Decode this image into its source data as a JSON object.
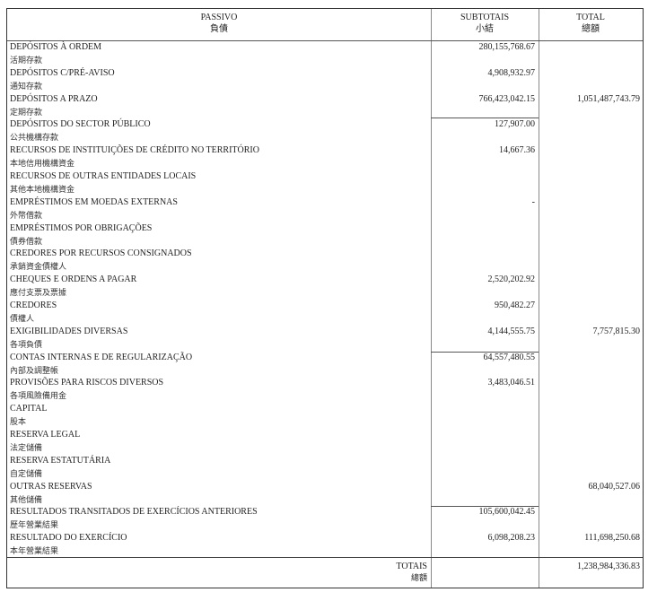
{
  "header": {
    "col1": "PASSIVO",
    "col1_zh": "負債",
    "col2": "SUBTOTAIS",
    "col2_zh": "小結",
    "col3": "TOTAL",
    "col3_zh": "總額"
  },
  "rows": [
    {
      "pt": "DEPÓSITOS À ORDEM",
      "zh": "活期存款",
      "sub": "280,155,768.67",
      "tot": ""
    },
    {
      "pt": "DEPÓSITOS C/PRÉ-AVISO",
      "zh": "通知存款",
      "sub": "4,908,932.97",
      "tot": ""
    },
    {
      "pt": "DEPÓSITOS A PRAZO",
      "zh": "定期存款",
      "sub": "766,423,042.15",
      "tot": "1,051,487,743.79"
    },
    {
      "pt": "DEPÓSITOS DO SECTOR PÚBLICO",
      "zh": "公共機構存款",
      "sub": "127,907.00",
      "tot": ""
    },
    {
      "pt": "RECURSOS DE INSTITUIÇÕES DE CRÉDITO NO TERRITÓRIO",
      "zh": "本地信用機構資金",
      "sub": "14,667.36",
      "tot": ""
    },
    {
      "pt": "RECURSOS DE OUTRAS ENTIDADES LOCAIS",
      "zh": "其他本地機構資金",
      "sub": "",
      "tot": ""
    },
    {
      "pt": "EMPRÉSTIMOS EM MOEDAS EXTERNAS",
      "zh": "外幣借款",
      "sub": "-",
      "tot": ""
    },
    {
      "pt": "EMPRÉSTIMOS POR OBRIGAÇÕES",
      "zh": "債券借款",
      "sub": "",
      "tot": ""
    },
    {
      "pt": "CREDORES POR RECURSOS CONSIGNADOS",
      "zh": "承銷資金債權人",
      "sub": "",
      "tot": ""
    },
    {
      "pt": "CHEQUES E ORDENS A PAGAR",
      "zh": "應付支票及票據",
      "sub": "2,520,202.92",
      "tot": ""
    },
    {
      "pt": "CREDORES",
      "zh": "債權人",
      "sub": "950,482.27",
      "tot": ""
    },
    {
      "pt": "EXIGIBILIDADES DIVERSAS",
      "zh": "各項負債",
      "sub": "4,144,555.75",
      "tot": "7,757,815.30"
    },
    {
      "pt": "CONTAS INTERNAS E DE REGULARIZAÇÃO",
      "zh": "內部及調整帳",
      "sub": "64,557,480.55",
      "tot": ""
    },
    {
      "pt": "PROVISÕES PARA RISCOS DIVERSOS",
      "zh": "各項風險備用金",
      "sub": "3,483,046.51",
      "tot": ""
    },
    {
      "pt": "CAPITAL",
      "zh": "股本",
      "sub": "",
      "tot": ""
    },
    {
      "pt": "RESERVA LEGAL",
      "zh": "法定儲備",
      "sub": "",
      "tot": ""
    },
    {
      "pt": "RESERVA ESTATUTÁRIA",
      "zh": "自定儲備",
      "sub": "",
      "tot": ""
    },
    {
      "pt": "OUTRAS RESERVAS",
      "zh": "其他儲備",
      "sub": "",
      "tot": "68,040,527.06"
    },
    {
      "pt": "RESULTADOS TRANSITADOS DE EXERCÍCIOS ANTERIORES",
      "zh": "歷年營業結果",
      "sub": "105,600,042.45",
      "tot": ""
    },
    {
      "pt": "RESULTADO DO EXERCÍCIO",
      "zh": "本年營業結果",
      "sub": "6,098,208.23",
      "tot": "111,698,250.68"
    }
  ],
  "totals": {
    "label": "TOTAIS",
    "label_zh": "總額",
    "value": "1,238,984,336.83"
  }
}
